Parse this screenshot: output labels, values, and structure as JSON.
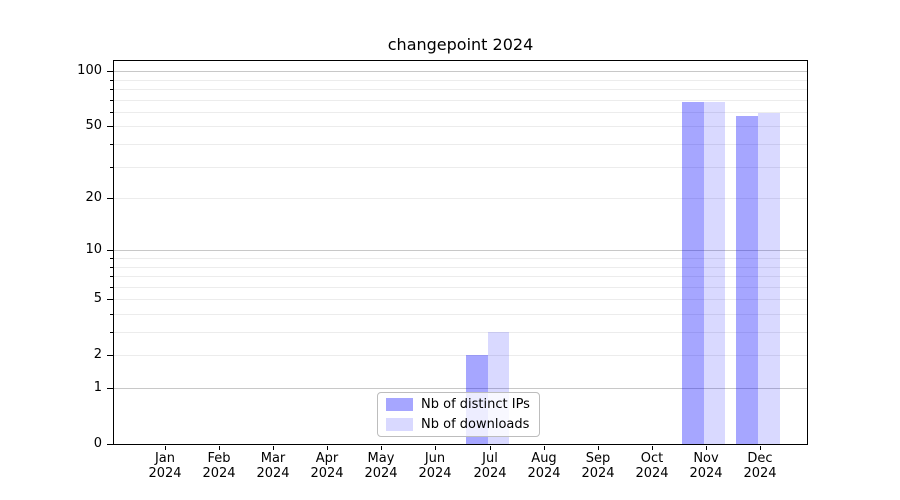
{
  "chart_data": {
    "type": "bar",
    "title": "changepoint 2024",
    "categories": [
      "Jan\n2024",
      "Feb\n2024",
      "Mar\n2024",
      "Apr\n2024",
      "May\n2024",
      "Jun\n2024",
      "Jul\n2024",
      "Aug\n2024",
      "Sep\n2024",
      "Oct\n2024",
      "Nov\n2024",
      "Dec\n2024"
    ],
    "series": [
      {
        "name": "Nb of distinct IPs",
        "color": "rgba(0,0,255,0.35)",
        "color_on_white": "#a5a5f8",
        "values": [
          0,
          0,
          0,
          0,
          0,
          0,
          2,
          0,
          0,
          0,
          68,
          57
        ]
      },
      {
        "name": "Nb of downloads",
        "color": "rgba(0,0,255,0.15)",
        "color_on_white": "#d9d9f8",
        "values": [
          0,
          0,
          0,
          0,
          0,
          0,
          3,
          0,
          0,
          0,
          68,
          59
        ]
      }
    ],
    "xlabel": "",
    "ylabel": "",
    "y_scale": "log1p (position proportional to log10(1+y))",
    "y_ticks": [
      0,
      1,
      2,
      5,
      10,
      20,
      50,
      100
    ],
    "y_major_gridlines": [
      1,
      10,
      100
    ],
    "y_minor_gridlines": [
      2,
      3,
      4,
      5,
      6,
      7,
      8,
      9,
      20,
      30,
      40,
      50,
      60,
      70,
      80,
      90
    ],
    "ylim": [
      0,
      115
    ],
    "grid": "horizontal only",
    "legend_position": "lower center",
    "spine_color": "#000000",
    "grid_major_color": "#c8c8c8",
    "grid_minor_color": "#ececec",
    "background_color": "#ffffff"
  }
}
